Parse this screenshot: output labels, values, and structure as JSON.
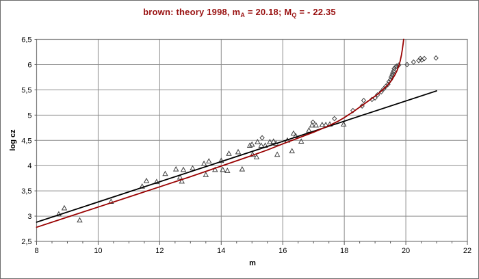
{
  "window": {
    "background": "#ffffff",
    "frame_border_color": "#6b6b6b"
  },
  "chart_data": {
    "type": "scatter",
    "title": "brown: theory 1998, mA = 20.18; MQ = - 22.35",
    "title_segments": [
      {
        "text": "brown: theory 1998, m",
        "sub": false
      },
      {
        "text": "A",
        "sub": true
      },
      {
        "text": " = 20.18; M",
        "sub": false
      },
      {
        "text": "Q",
        "sub": true
      },
      {
        "text": " = - 22.35",
        "sub": false
      }
    ],
    "title_color": "#991111",
    "xlabel": "m",
    "ylabel": "log cz",
    "xlim": [
      8,
      22
    ],
    "ylim": [
      2.5,
      6.5
    ],
    "x_ticks": [
      {
        "value": 8,
        "label": "8"
      },
      {
        "value": 10,
        "label": "10"
      },
      {
        "value": 12,
        "label": "12"
      },
      {
        "value": 14,
        "label": "14"
      },
      {
        "value": 16,
        "label": "16"
      },
      {
        "value": 18,
        "label": "18"
      },
      {
        "value": 20,
        "label": "20"
      },
      {
        "value": 22,
        "label": "22"
      }
    ],
    "x_minor_step": 0.5,
    "y_ticks": [
      {
        "value": 2.5,
        "label": "2,5"
      },
      {
        "value": 3.0,
        "label": "3"
      },
      {
        "value": 3.5,
        "label": "3,5"
      },
      {
        "value": 4.0,
        "label": "4"
      },
      {
        "value": 4.5,
        "label": "4,5"
      },
      {
        "value": 5.0,
        "label": "5"
      },
      {
        "value": 5.5,
        "label": "5,5"
      },
      {
        "value": 6.0,
        "label": "6"
      },
      {
        "value": 6.5,
        "label": "6,5"
      }
    ],
    "grid": true,
    "grid_color": "#8c8c8c",
    "plot_border_color": "#7a7a7a",
    "tick_color": "#555555",
    "tick_label_color": "#000000",
    "legend": "none",
    "series": [
      {
        "name": "observed-triangles",
        "type": "scatter",
        "marker": "triangle",
        "marker_color": "#3f3f3f",
        "points": [
          [
            8.72,
            3.04
          ],
          [
            8.9,
            3.16
          ],
          [
            9.4,
            2.92
          ],
          [
            10.42,
            3.29
          ],
          [
            11.43,
            3.59
          ],
          [
            11.57,
            3.7
          ],
          [
            11.9,
            3.68
          ],
          [
            12.18,
            3.84
          ],
          [
            12.53,
            3.93
          ],
          [
            12.66,
            3.77
          ],
          [
            12.72,
            3.69
          ],
          [
            12.77,
            3.92
          ],
          [
            13.07,
            3.95
          ],
          [
            13.44,
            4.04
          ],
          [
            13.5,
            3.82
          ],
          [
            13.6,
            4.09
          ],
          [
            13.8,
            3.92
          ],
          [
            14.0,
            4.1
          ],
          [
            14.05,
            3.92
          ],
          [
            14.2,
            3.9
          ],
          [
            14.25,
            4.24
          ],
          [
            14.55,
            4.27
          ],
          [
            14.68,
            3.93
          ],
          [
            14.93,
            4.4
          ],
          [
            15.0,
            4.42
          ],
          [
            15.02,
            4.22
          ],
          [
            15.15,
            4.17
          ],
          [
            15.18,
            4.47
          ],
          [
            15.3,
            4.4
          ],
          [
            15.43,
            4.4
          ],
          [
            15.58,
            4.47
          ],
          [
            15.7,
            4.48
          ],
          [
            15.78,
            4.44
          ],
          [
            15.82,
            4.22
          ],
          [
            16.15,
            4.5
          ],
          [
            16.3,
            4.29
          ],
          [
            16.35,
            4.64
          ],
          [
            16.42,
            4.59
          ],
          [
            16.6,
            4.48
          ],
          [
            16.85,
            4.7
          ],
          [
            16.95,
            4.8
          ],
          [
            17.08,
            4.8
          ],
          [
            17.28,
            4.81
          ],
          [
            17.4,
            4.81
          ],
          [
            17.53,
            4.82
          ],
          [
            17.98,
            4.82
          ]
        ]
      },
      {
        "name": "observed-diamonds",
        "type": "scatter",
        "marker": "diamond",
        "marker_color": "#3f3f3f",
        "points": [
          [
            15.33,
            4.55
          ],
          [
            16.98,
            4.86
          ],
          [
            17.68,
            4.93
          ],
          [
            18.28,
            5.09
          ],
          [
            18.58,
            5.18
          ],
          [
            18.63,
            5.29
          ],
          [
            18.9,
            5.31
          ],
          [
            19.0,
            5.34
          ],
          [
            19.08,
            5.4
          ],
          [
            19.2,
            5.46
          ],
          [
            19.28,
            5.52
          ],
          [
            19.35,
            5.57
          ],
          [
            19.42,
            5.61
          ],
          [
            19.45,
            5.66
          ],
          [
            19.5,
            5.7
          ],
          [
            19.52,
            5.75
          ],
          [
            19.55,
            5.79
          ],
          [
            19.57,
            5.83
          ],
          [
            19.6,
            5.87
          ],
          [
            19.62,
            5.92
          ],
          [
            19.66,
            5.95
          ],
          [
            19.7,
            5.97
          ],
          [
            19.77,
            5.99
          ],
          [
            20.04,
            6.0
          ],
          [
            20.25,
            6.05
          ],
          [
            20.42,
            6.08
          ],
          [
            20.47,
            6.12
          ],
          [
            20.52,
            6.09
          ],
          [
            20.6,
            6.12
          ],
          [
            20.98,
            6.13
          ]
        ]
      },
      {
        "name": "linear-fit-line",
        "type": "line",
        "stroke": "#000000",
        "stroke_width": 1.8,
        "points": [
          [
            8,
            2.88
          ],
          [
            21,
            5.48
          ]
        ]
      },
      {
        "name": "brown-theory-curve",
        "type": "line",
        "stroke": "#990000",
        "stroke_width": 1.8,
        "points": [
          [
            8,
            2.78
          ],
          [
            9,
            2.98
          ],
          [
            10,
            3.18
          ],
          [
            11,
            3.38
          ],
          [
            12,
            3.58
          ],
          [
            13,
            3.78
          ],
          [
            14,
            3.99
          ],
          [
            15,
            4.2
          ],
          [
            15.5,
            4.31
          ],
          [
            16,
            4.43
          ],
          [
            16.5,
            4.545
          ],
          [
            17,
            4.66
          ],
          [
            17.5,
            4.79
          ],
          [
            17.8,
            4.88
          ],
          [
            18,
            4.95
          ],
          [
            18.3,
            5.07
          ],
          [
            18.6,
            5.2
          ],
          [
            18.9,
            5.33
          ],
          [
            19.1,
            5.42
          ],
          [
            19.3,
            5.53
          ],
          [
            19.45,
            5.62
          ],
          [
            19.55,
            5.7
          ],
          [
            19.65,
            5.8
          ],
          [
            19.72,
            5.89
          ],
          [
            19.78,
            5.99
          ],
          [
            19.82,
            6.08
          ],
          [
            19.86,
            6.2
          ],
          [
            19.89,
            6.31
          ],
          [
            19.91,
            6.4
          ],
          [
            19.93,
            6.5
          ]
        ]
      }
    ]
  }
}
